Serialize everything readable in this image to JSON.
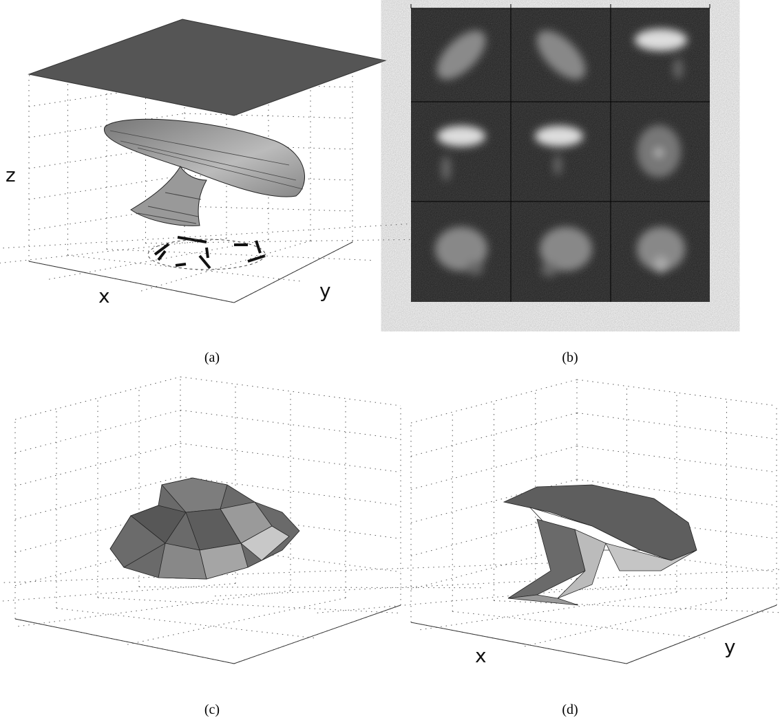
{
  "panels": [
    {
      "caption": "(a)",
      "axis_labels": {
        "x": "x",
        "y": "y",
        "z": "z"
      }
    },
    {
      "caption": "(b)"
    },
    {
      "caption": "(c)"
    },
    {
      "caption": "(d)",
      "axis_labels": {
        "x": "x",
        "y": "y"
      }
    }
  ]
}
